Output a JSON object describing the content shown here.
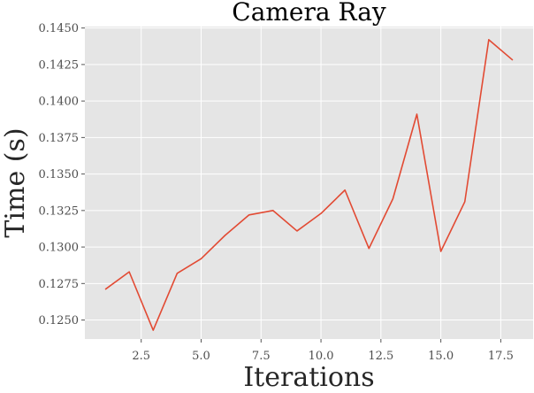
{
  "chart_data": {
    "type": "line",
    "title": "Camera Ray",
    "xlabel": "Iterations",
    "ylabel": "Time (s)",
    "xlim": [
      0.15,
      18.85
    ],
    "ylim": [
      0.1237,
      0.1451
    ],
    "xticks": [
      2.5,
      5.0,
      7.5,
      10.0,
      12.5,
      15.0,
      17.5
    ],
    "xtick_labels": [
      "2.5",
      "5.0",
      "7.5",
      "10.0",
      "12.5",
      "15.0",
      "17.5"
    ],
    "yticks": [
      0.125,
      0.1275,
      0.13,
      0.1325,
      0.135,
      0.1375,
      0.14,
      0.1425,
      0.145
    ],
    "ytick_labels": [
      "0.1250",
      "0.1275",
      "0.1300",
      "0.1325",
      "0.1350",
      "0.1375",
      "0.1400",
      "0.1425",
      "0.1450"
    ],
    "grid": true,
    "background": "#e5e5e5",
    "line_color": "#e24a33",
    "series": [
      {
        "x": [
          1,
          2,
          3,
          4,
          5,
          6,
          7,
          8,
          9,
          10,
          11,
          12,
          13,
          14,
          15,
          16,
          17,
          18
        ],
        "values": [
          0.1271,
          0.1283,
          0.1243,
          0.1282,
          0.1292,
          0.1308,
          0.1322,
          0.1325,
          0.1311,
          0.1323,
          0.1339,
          0.1299,
          0.1333,
          0.1391,
          0.1297,
          0.1331,
          0.1442,
          0.1428
        ]
      }
    ]
  }
}
